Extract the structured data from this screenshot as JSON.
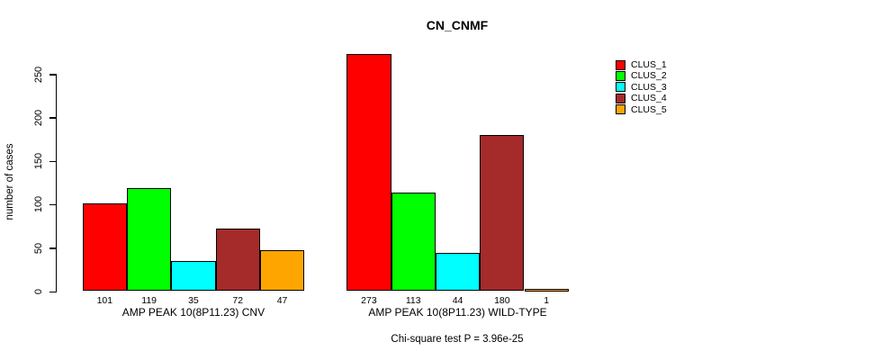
{
  "title": "CN_CNMF",
  "annotation": "Chi-square test P = 3.96e-25",
  "chart_data": {
    "type": "bar",
    "title": "CN_CNMF",
    "xlabel": "",
    "ylabel": "number of cases",
    "ylim": [
      0,
      283
    ],
    "yticks": [
      0,
      50,
      100,
      150,
      200,
      250
    ],
    "grid": false,
    "bar_borders": true,
    "categories": [
      "AMP PEAK 10(8P11.23) CNV",
      "AMP PEAK 10(8P11.23) WILD-TYPE"
    ],
    "series": [
      {
        "name": "CLUS_1",
        "color": "#FF0000",
        "values": [
          101,
          273
        ]
      },
      {
        "name": "CLUS_2",
        "color": "#00FF00",
        "values": [
          119,
          113
        ]
      },
      {
        "name": "CLUS_3",
        "color": "#00FFFF",
        "values": [
          35,
          44
        ]
      },
      {
        "name": "CLUS_4",
        "color": "#A52A2A",
        "values": [
          72,
          180
        ]
      },
      {
        "name": "CLUS_5",
        "color": "#FFA500",
        "values": [
          47,
          1
        ]
      }
    ],
    "legend": {
      "position": "right",
      "entries": [
        {
          "label": "CLUS_1",
          "color": "#FF0000"
        },
        {
          "label": "CLUS_2",
          "color": "#00FF00"
        },
        {
          "label": "CLUS_3",
          "color": "#00FFFF"
        },
        {
          "label": "CLUS_4",
          "color": "#A52A2A"
        },
        {
          "label": "CLUS_5",
          "color": "#FFA500"
        }
      ]
    },
    "annotation": "Chi-square test P = 3.96e-25"
  }
}
